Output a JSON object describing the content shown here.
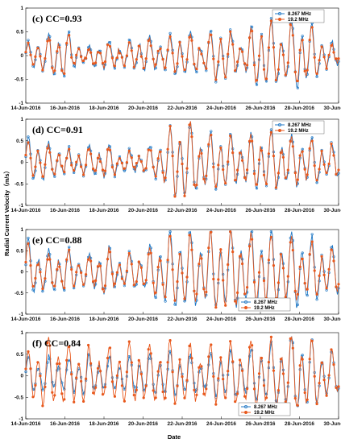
{
  "figure": {
    "ylabel": "Radial Current Velocity（m/s）",
    "xlabel": "Date",
    "colors": {
      "series_a": "#1f77c4",
      "series_b": "#e8581c"
    }
  },
  "chart_data": [
    {
      "type": "line",
      "panel": "(c)",
      "annotation": "CC=0.93",
      "xlabel": "",
      "ylabel": "(m/s)",
      "ylim": [
        -1,
        1
      ],
      "yticks": [
        -1,
        -0.5,
        0,
        0.5,
        1
      ],
      "xticks": [
        "14-Jun-2016",
        "16-Jun-2016",
        "18-Jun-2016",
        "20-Jun-2016",
        "22-Jun-2016",
        "24-Jun-2016",
        "26-Jun-2016",
        "28-Jun-2016",
        "30-Jun-2016"
      ],
      "xlim": [
        "2016-06-14",
        "2016-06-30"
      ],
      "legend_loc": "top-right",
      "series": [
        {
          "name": "8.267 MHz",
          "x_days": [
            0,
            1,
            2,
            3,
            4,
            5,
            6,
            7,
            8,
            9,
            10,
            11,
            12,
            13,
            14,
            15,
            16
          ],
          "values": [
            0.2,
            0.35,
            0.45,
            0.1,
            0.3,
            0.2,
            0.35,
            0.3,
            0.45,
            0.3,
            0.55,
            0.25,
            0.7,
            0.5,
            0.7,
            0.4,
            0.15
          ]
        },
        {
          "name": "19.2 MHz",
          "x_days": [
            0,
            1,
            2,
            3,
            4,
            5,
            6,
            7,
            8,
            9,
            10,
            11,
            12,
            13,
            14,
            15,
            16
          ],
          "values": [
            0.15,
            0.3,
            0.4,
            0.05,
            0.25,
            0.15,
            0.3,
            0.25,
            0.4,
            0.25,
            0.5,
            0.2,
            0.65,
            0.45,
            0.6,
            0.35,
            0.1
          ]
        }
      ],
      "envelope": {
        "min": -0.9,
        "max": 0.95
      }
    },
    {
      "type": "line",
      "panel": "(d)",
      "annotation": "CC=0.91",
      "ylim": [
        -1,
        1
      ],
      "yticks": [
        -1,
        -0.5,
        0,
        0.5,
        1
      ],
      "xticks": [
        "14-Jun-2016",
        "16-Jun-2016",
        "18-Jun-2016",
        "20-Jun-2016",
        "22-Jun-2016",
        "24-Jun-2016",
        "26-Jun-2016",
        "28-Jun-2016",
        "30-Jun-2016"
      ],
      "xlim": [
        "2016-06-14",
        "2016-06-30"
      ],
      "legend_loc": "top-right",
      "series": [
        {
          "name": "8.267 MHz",
          "x_days": [
            0,
            1,
            2,
            3,
            4,
            5,
            6,
            7,
            8,
            9,
            10,
            11,
            12,
            13,
            14,
            15,
            16
          ],
          "values": [
            0.5,
            0.4,
            0.25,
            0.3,
            0.35,
            0.25,
            0.2,
            0.45,
            0.9,
            0.55,
            0.6,
            0.4,
            0.65,
            0.55,
            0.5,
            0.45,
            0.3
          ]
        },
        {
          "name": "19.2 MHz",
          "x_days": [
            0,
            1,
            2,
            3,
            4,
            5,
            6,
            7,
            8,
            9,
            10,
            11,
            12,
            13,
            14,
            15,
            16
          ],
          "values": [
            0.4,
            0.35,
            0.2,
            0.25,
            0.3,
            0.2,
            0.15,
            0.4,
            0.95,
            0.5,
            0.55,
            0.35,
            0.6,
            0.5,
            0.45,
            0.4,
            0.25
          ]
        }
      ],
      "envelope": {
        "min": -0.8,
        "max": 0.95
      }
    },
    {
      "type": "line",
      "panel": "(e)",
      "annotation": "CC=0.88",
      "ylim": [
        -1,
        1
      ],
      "yticks": [
        -1,
        -0.5,
        0,
        0.5,
        1
      ],
      "xticks": [
        "14-Jun-2016",
        "16-Jun-2016",
        "18-Jun-2016",
        "20-Jun-2016",
        "22-Jun-2016",
        "24-Jun-2016",
        "26-Jun-2016",
        "28-Jun-2016",
        "30-Jun-2016"
      ],
      "xlim": [
        "2016-06-14",
        "2016-06-30"
      ],
      "legend_loc": "bottom-right",
      "series": [
        {
          "name": "8.267 MHz",
          "x_days": [
            0,
            1,
            2,
            3,
            4,
            5,
            6,
            7,
            8,
            9,
            10,
            11,
            12,
            13,
            14,
            15,
            16
          ],
          "values": [
            0.65,
            0.4,
            0.45,
            0.3,
            0.5,
            0.35,
            0.4,
            0.75,
            0.85,
            0.7,
            0.8,
            0.75,
            0.85,
            0.75,
            0.8,
            0.6,
            0.45
          ]
        },
        {
          "name": "19.2 MHz",
          "x_days": [
            0,
            1,
            2,
            3,
            4,
            5,
            6,
            7,
            8,
            9,
            10,
            11,
            12,
            13,
            14,
            15,
            16
          ],
          "values": [
            0.55,
            0.3,
            0.4,
            0.25,
            0.45,
            0.3,
            0.35,
            0.65,
            0.75,
            0.6,
            0.95,
            0.65,
            0.7,
            0.65,
            0.6,
            0.5,
            0.4
          ]
        }
      ],
      "envelope": {
        "min": -1.0,
        "max": 0.95
      }
    },
    {
      "type": "line",
      "panel": "(f)",
      "annotation": "CC=0.84",
      "ylim": [
        -1,
        1
      ],
      "yticks": [
        -1,
        -0.5,
        0,
        0.5,
        1
      ],
      "xticks": [
        "14-Jun-2016",
        "16-Jun-2016",
        "18-Jun-2016",
        "20-Jun-2016",
        "22-Jun-2016",
        "24-Jun-2016",
        "26-Jun-2016",
        "28-Jun-2016",
        "30-Jun-2016"
      ],
      "xlim": [
        "2016-06-14",
        "2016-06-30"
      ],
      "legend_loc": "bottom-right",
      "series": [
        {
          "name": "8.267 MHz",
          "x_days": [
            0,
            1,
            2,
            3,
            4,
            5,
            6,
            7,
            8,
            9,
            10,
            11,
            12,
            13,
            14,
            15,
            16
          ],
          "values": [
            0.3,
            0.35,
            0.3,
            0.4,
            0.35,
            0.3,
            0.4,
            0.45,
            0.4,
            0.35,
            0.45,
            0.5,
            0.55,
            0.6,
            0.9,
            0.55,
            0.35
          ]
        },
        {
          "name": "19.2 MHz",
          "x_days": [
            0,
            1,
            2,
            3,
            4,
            5,
            6,
            7,
            8,
            9,
            10,
            11,
            12,
            13,
            14,
            15,
            16
          ],
          "values": [
            0.35,
            0.75,
            0.6,
            0.55,
            0.5,
            0.6,
            0.55,
            0.65,
            0.6,
            0.55,
            0.6,
            0.65,
            0.7,
            0.65,
            0.8,
            0.6,
            0.35
          ]
        }
      ],
      "envelope": {
        "min": -0.7,
        "max": 0.9
      }
    }
  ]
}
